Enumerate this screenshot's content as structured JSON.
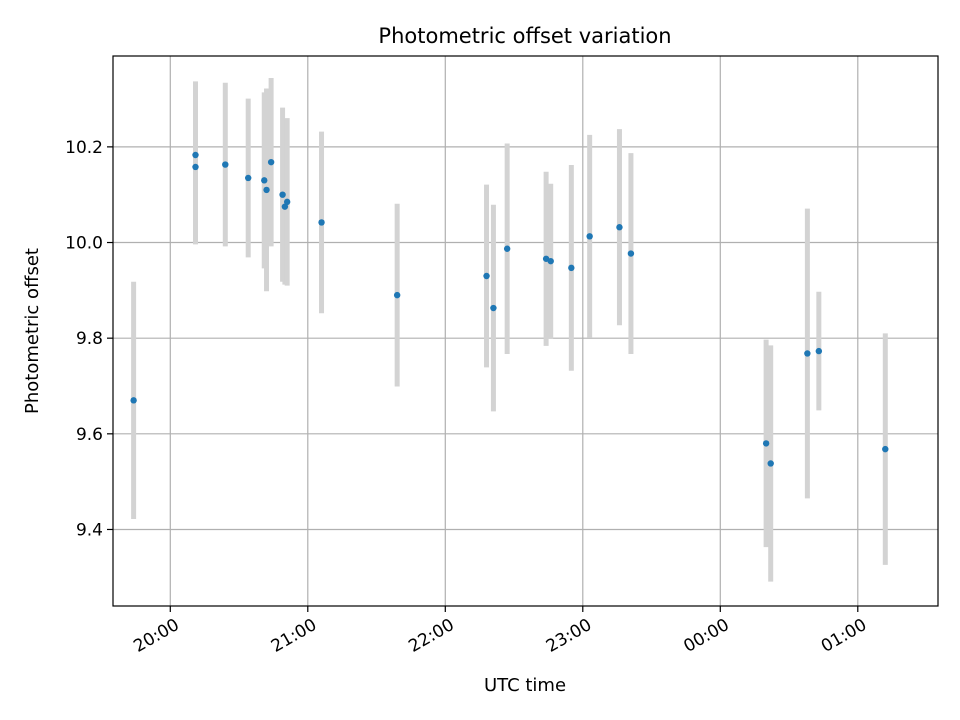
{
  "chart_data": {
    "type": "scatter",
    "title": "Photometric offset variation",
    "xlabel": "UTC time",
    "ylabel": "Photometric offset",
    "grid": true,
    "xlim": [
      "19:35",
      "25:35"
    ],
    "ylim": [
      9.24,
      10.39
    ],
    "x_ticks": [
      "20:00",
      "21:00",
      "22:00",
      "23:00",
      "00:00",
      "01:00"
    ],
    "y_ticks": [
      "9.4",
      "9.6",
      "9.8",
      "10.0",
      "10.2"
    ],
    "colors": {
      "marker": "#1f77b4",
      "errorbar": "#d3d3d3",
      "grid": "#b0b0b0"
    },
    "points": [
      {
        "t": "19:44",
        "y": 9.67,
        "err": 0.248
      },
      {
        "t": "20:11",
        "y": 10.183,
        "err": 0.154
      },
      {
        "t": "20:11",
        "y": 10.158,
        "err": 0.162
      },
      {
        "t": "20:24",
        "y": 10.163,
        "err": 0.171
      },
      {
        "t": "20:34",
        "y": 10.135,
        "err": 0.166
      },
      {
        "t": "20:41",
        "y": 10.13,
        "err": 0.184
      },
      {
        "t": "20:42",
        "y": 10.11,
        "err": 0.212
      },
      {
        "t": "20:44",
        "y": 10.168,
        "err": 0.176
      },
      {
        "t": "20:49",
        "y": 10.1,
        "err": 0.182
      },
      {
        "t": "20:50",
        "y": 10.075,
        "err": 0.163
      },
      {
        "t": "20:51",
        "y": 10.085,
        "err": 0.175
      },
      {
        "t": "21:06",
        "y": 10.042,
        "err": 0.19
      },
      {
        "t": "21:39",
        "y": 9.89,
        "err": 0.191
      },
      {
        "t": "22:18",
        "y": 9.93,
        "err": 0.191
      },
      {
        "t": "22:21",
        "y": 9.863,
        "err": 0.216
      },
      {
        "t": "22:27",
        "y": 9.987,
        "err": 0.22
      },
      {
        "t": "22:44",
        "y": 9.966,
        "err": 0.182
      },
      {
        "t": "22:46",
        "y": 9.961,
        "err": 0.162
      },
      {
        "t": "22:55",
        "y": 9.947,
        "err": 0.215
      },
      {
        "t": "23:03",
        "y": 10.013,
        "err": 0.212
      },
      {
        "t": "23:16",
        "y": 10.032,
        "err": 0.205
      },
      {
        "t": "23:21",
        "y": 9.977,
        "err": 0.21
      },
      {
        "t": "24:20",
        "y": 9.58,
        "err": 0.217
      },
      {
        "t": "24:22",
        "y": 9.538,
        "err": 0.247
      },
      {
        "t": "24:38",
        "y": 9.768,
        "err": 0.303
      },
      {
        "t": "24:43",
        "y": 9.773,
        "err": 0.124
      },
      {
        "t": "25:12",
        "y": 9.568,
        "err": 0.242
      }
    ]
  }
}
